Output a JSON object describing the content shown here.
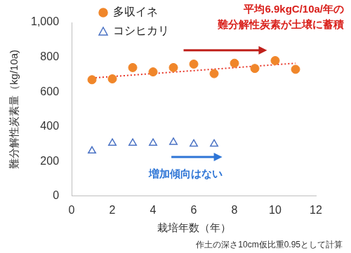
{
  "chart_data": {
    "type": "scatter",
    "xlabel": "栽培年数（年）",
    "ylabel": "難分解性炭素量（kg/10a)",
    "xlim": [
      0,
      12
    ],
    "xticks": [
      0,
      2,
      4,
      6,
      8,
      10,
      12
    ],
    "ylim": [
      0,
      1000
    ],
    "yticks": [
      0,
      200,
      400,
      600,
      800,
      1000
    ],
    "grid": false,
    "legend": "upper left",
    "series": [
      {
        "name": "多収イネ",
        "color": "#f0862a",
        "marker": "circle",
        "x": [
          1,
          2,
          3,
          4,
          5,
          6,
          7,
          8,
          9,
          10,
          11
        ],
        "values": [
          670,
          675,
          740,
          715,
          740,
          760,
          705,
          765,
          735,
          780,
          730
        ]
      },
      {
        "name": "コシヒカリ",
        "color": "#4a72c4",
        "marker": "triangle-open",
        "x": [
          1,
          2,
          3,
          4,
          5,
          6,
          7
        ],
        "values": [
          260,
          305,
          305,
          305,
          310,
          300,
          300
        ]
      }
    ],
    "trend": {
      "x": [
        1,
        11
      ],
      "values": [
        680,
        765
      ],
      "color": "#e8382a",
      "line_style": "dotted"
    },
    "annotations": [
      {
        "lines": [
          "平均6.9kgC/10a/年の",
          "難分解性炭素が土壌に蓄積"
        ],
        "color": "#d9201b"
      },
      {
        "lines": [
          "増加傾向はない"
        ],
        "color": "#2e75d6"
      }
    ],
    "note": "作土の深さ10cm仮比重0.95として計算"
  }
}
